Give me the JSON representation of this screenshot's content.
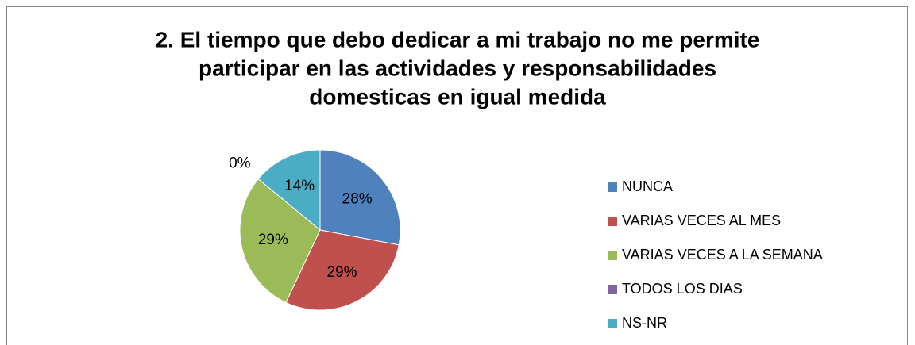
{
  "chart_data": {
    "type": "pie",
    "title": [
      "2. El tiempo que debo dedicar a mi trabajo no me permite",
      "participar en las actividades y responsabilidades",
      "domesticas en igual medida"
    ],
    "categories": [
      "NUNCA",
      "VARIAS VECES AL MES",
      "VARIAS VECES A LA SEMANA",
      "TODOS LOS DIAS",
      "NS-NR"
    ],
    "values": [
      28,
      29,
      29,
      0,
      14
    ],
    "value_labels": [
      "28%",
      "29%",
      "29%",
      "0%",
      "14%"
    ],
    "colors": [
      "#4f81bd",
      "#c0504d",
      "#9bbb59",
      "#8064a2",
      "#4bacc6"
    ],
    "legend": "right"
  }
}
